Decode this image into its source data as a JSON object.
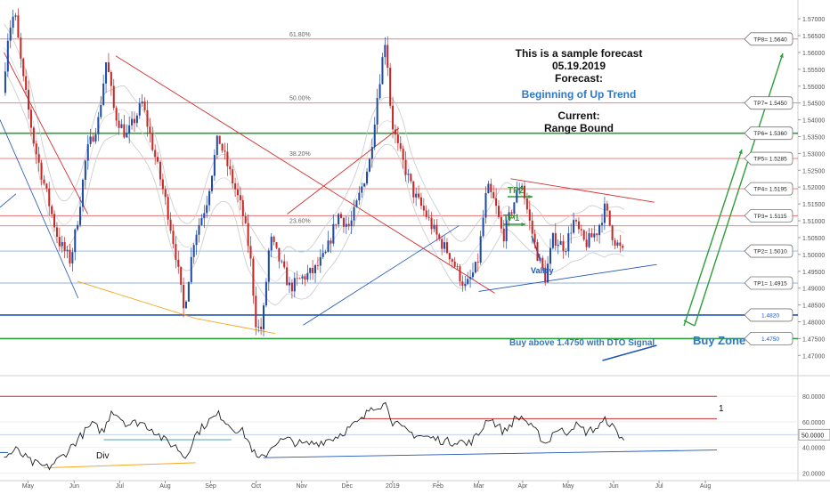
{
  "chart_data": {
    "type": "candlestick",
    "price_axis": {
      "min": 1.464,
      "max": 1.574,
      "ticks": [
        "1.57000",
        "1.56500",
        "1.56000",
        "1.55500",
        "1.55000",
        "1.54500",
        "1.54000",
        "1.53500",
        "1.53000",
        "1.52500",
        "1.52000",
        "1.51500",
        "1.51000",
        "1.50500",
        "1.50000",
        "1.49500",
        "1.49000",
        "1.48500",
        "1.48000",
        "1.47500",
        "1.47000"
      ]
    },
    "indicator_axis": {
      "min": 14,
      "max": 92,
      "ticks": [
        "80.0000",
        "60.0000",
        "40.0000",
        "20.0000"
      ],
      "current_label": "50.0000"
    },
    "x_axis": {
      "ticks": [
        {
          "label": "May",
          "t": 0.035
        },
        {
          "label": "Jun",
          "t": 0.093
        },
        {
          "label": "Jul",
          "t": 0.15
        },
        {
          "label": "Aug",
          "t": 0.207
        },
        {
          "label": "Sep",
          "t": 0.264
        },
        {
          "label": "Oct",
          "t": 0.321
        },
        {
          "label": "Nov",
          "t": 0.378
        },
        {
          "label": "Dec",
          "t": 0.435
        },
        {
          "label": "2019",
          "t": 0.492
        },
        {
          "label": "Feb",
          "t": 0.549
        },
        {
          "label": "Mar",
          "t": 0.6
        },
        {
          "label": "Apr",
          "t": 0.655
        },
        {
          "label": "May",
          "t": 0.712
        },
        {
          "label": "Jun",
          "t": 0.769
        },
        {
          "label": "Jul",
          "t": 0.826
        },
        {
          "label": "Aug",
          "t": 0.884
        }
      ]
    },
    "price_path": [
      [
        0.005,
        1.548
      ],
      [
        0.012,
        1.566
      ],
      [
        0.02,
        1.572
      ],
      [
        0.03,
        1.553
      ],
      [
        0.045,
        1.532
      ],
      [
        0.06,
        1.518
      ],
      [
        0.075,
        1.504
      ],
      [
        0.09,
        1.498
      ],
      [
        0.1,
        1.512
      ],
      [
        0.11,
        1.53
      ],
      [
        0.125,
        1.54
      ],
      [
        0.135,
        1.558
      ],
      [
        0.145,
        1.542
      ],
      [
        0.16,
        1.535
      ],
      [
        0.18,
        1.545
      ],
      [
        0.195,
        1.53
      ],
      [
        0.21,
        1.515
      ],
      [
        0.222,
        1.5
      ],
      [
        0.232,
        1.483
      ],
      [
        0.245,
        1.505
      ],
      [
        0.26,
        1.515
      ],
      [
        0.275,
        1.535
      ],
      [
        0.29,
        1.524
      ],
      [
        0.305,
        1.513
      ],
      [
        0.315,
        1.5
      ],
      [
        0.323,
        1.478
      ],
      [
        0.33,
        1.478
      ],
      [
        0.34,
        1.505
      ],
      [
        0.352,
        1.498
      ],
      [
        0.365,
        1.49
      ],
      [
        0.38,
        1.493
      ],
      [
        0.395,
        1.495
      ],
      [
        0.41,
        1.5
      ],
      [
        0.425,
        1.512
      ],
      [
        0.44,
        1.508
      ],
      [
        0.455,
        1.52
      ],
      [
        0.465,
        1.528
      ],
      [
        0.475,
        1.548
      ],
      [
        0.485,
        1.565
      ],
      [
        0.492,
        1.54
      ],
      [
        0.5,
        1.532
      ],
      [
        0.51,
        1.525
      ],
      [
        0.52,
        1.518
      ],
      [
        0.535,
        1.512
      ],
      [
        0.55,
        1.505
      ],
      [
        0.565,
        1.5
      ],
      [
        0.575,
        1.495
      ],
      [
        0.585,
        1.49
      ],
      [
        0.6,
        1.497
      ],
      [
        0.612,
        1.52
      ],
      [
        0.622,
        1.515
      ],
      [
        0.632,
        1.505
      ],
      [
        0.645,
        1.515
      ],
      [
        0.655,
        1.522
      ],
      [
        0.665,
        1.51
      ],
      [
        0.675,
        1.5
      ],
      [
        0.685,
        1.493
      ],
      [
        0.695,
        1.505
      ],
      [
        0.71,
        1.502
      ],
      [
        0.72,
        1.51
      ],
      [
        0.735,
        1.503
      ],
      [
        0.75,
        1.507
      ],
      [
        0.76,
        1.514
      ],
      [
        0.77,
        1.505
      ],
      [
        0.782,
        1.5005
      ]
    ],
    "indicator_path": [
      [
        0.005,
        32
      ],
      [
        0.02,
        38
      ],
      [
        0.04,
        28
      ],
      [
        0.06,
        24
      ],
      [
        0.08,
        34
      ],
      [
        0.1,
        48
      ],
      [
        0.115,
        58
      ],
      [
        0.13,
        52
      ],
      [
        0.14,
        70
      ],
      [
        0.16,
        58
      ],
      [
        0.175,
        60
      ],
      [
        0.19,
        55
      ],
      [
        0.205,
        46
      ],
      [
        0.222,
        40
      ],
      [
        0.232,
        32
      ],
      [
        0.245,
        50
      ],
      [
        0.26,
        60
      ],
      [
        0.275,
        66
      ],
      [
        0.29,
        56
      ],
      [
        0.305,
        52
      ],
      [
        0.315,
        40
      ],
      [
        0.323,
        30
      ],
      [
        0.33,
        32
      ],
      [
        0.345,
        44
      ],
      [
        0.36,
        46
      ],
      [
        0.38,
        42
      ],
      [
        0.4,
        44
      ],
      [
        0.42,
        48
      ],
      [
        0.44,
        56
      ],
      [
        0.455,
        62
      ],
      [
        0.465,
        72
      ],
      [
        0.475,
        73
      ],
      [
        0.485,
        74
      ],
      [
        0.492,
        60
      ],
      [
        0.505,
        54
      ],
      [
        0.52,
        50
      ],
      [
        0.535,
        48
      ],
      [
        0.55,
        46
      ],
      [
        0.565,
        44
      ],
      [
        0.575,
        46
      ],
      [
        0.585,
        42
      ],
      [
        0.6,
        50
      ],
      [
        0.612,
        64
      ],
      [
        0.622,
        58
      ],
      [
        0.632,
        52
      ],
      [
        0.645,
        62
      ],
      [
        0.655,
        64
      ],
      [
        0.665,
        56
      ],
      [
        0.675,
        50
      ],
      [
        0.685,
        42
      ],
      [
        0.695,
        54
      ],
      [
        0.71,
        52
      ],
      [
        0.72,
        58
      ],
      [
        0.735,
        52
      ],
      [
        0.75,
        56
      ],
      [
        0.76,
        62
      ],
      [
        0.77,
        54
      ],
      [
        0.782,
        46
      ]
    ],
    "levels": [
      {
        "name": "61.80%",
        "price": 1.564,
        "color": "#e57373"
      },
      {
        "name": "50.00%",
        "price": 1.545,
        "color": "#e57373"
      },
      {
        "name": "38.20%",
        "price": 1.5285,
        "color": "#e57373"
      },
      {
        "name": "23.60%",
        "price": 1.5085,
        "color": "#e57373"
      },
      {
        "name": "TP6",
        "price": 1.536,
        "color": "#2e9e3a",
        "width": 1.6
      },
      {
        "name": "TP4",
        "price": 1.5195,
        "color": "#e57373"
      },
      {
        "name": "TP3",
        "price": 1.5115,
        "color": "#e57373"
      },
      {
        "name": "TP2",
        "price": 1.501,
        "color": "#8fb2e0"
      },
      {
        "name": "TP1",
        "price": 1.4915,
        "color": "#8fb2e0"
      },
      {
        "name": "buy-top",
        "price": 1.482,
        "color": "#1f55b5",
        "width": 1.6
      },
      {
        "name": "buy-bottom",
        "price": 1.475,
        "color": "#2e9e3a",
        "width": 1.6
      }
    ],
    "right_labels": [
      {
        "text": "TP8= 1.5640",
        "price": 1.564
      },
      {
        "text": "TP7= 1.5450",
        "price": 1.545
      },
      {
        "text": "TP6= 1.5360",
        "price": 1.536
      },
      {
        "text": "TP5= 1.5285",
        "price": 1.5285
      },
      {
        "text": "TP4= 1.5195",
        "price": 1.5195
      },
      {
        "text": "TP3= 1.5115",
        "price": 1.5115
      },
      {
        "text": "TP2= 1.5010",
        "price": 1.501
      },
      {
        "text": "TP1= 1.4915",
        "price": 1.4915
      },
      {
        "text": "1.4820",
        "price": 1.482,
        "color": "#1f55b5"
      },
      {
        "text": "1.4750",
        "price": 1.475,
        "color": "#1f55b5"
      }
    ],
    "fib_labels": [
      {
        "text": "61.80%",
        "price": 1.564
      },
      {
        "text": "50.00%",
        "price": 1.545
      },
      {
        "text": "38.20%",
        "price": 1.5285
      },
      {
        "text": "23.60%",
        "price": 1.5085
      }
    ],
    "annotations": {
      "line1": "This is a sample forecast",
      "line2": "05.19.2019",
      "line3": "Forecast:",
      "forecast": "Beginning of Up Trend",
      "current_label": "Current:",
      "current_value": "Range Bound",
      "tp2": "TP2",
      "tp1": "TP1",
      "valley": "Valley",
      "buy_text": "Buy above 1.4750 with DTO Signal",
      "buy_zone": "Buy Zone",
      "div": "Div",
      "one": "1"
    },
    "colors": {
      "bull": "#1f4aa8",
      "bear": "#c62828",
      "green": "#2e9e3a",
      "blue": "#1f55b5",
      "red": "#d32f2f",
      "orange": "#f5a623"
    }
  }
}
